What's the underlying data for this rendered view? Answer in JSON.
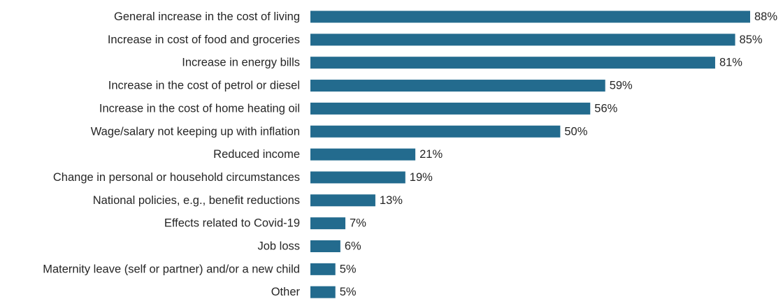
{
  "chart_data": {
    "type": "bar",
    "orientation": "horizontal",
    "categories": [
      "General increase in the cost of living",
      "Increase in cost of food and groceries",
      "Increase in energy bills",
      "Increase in the cost of petrol or diesel",
      "Increase in the cost of home heating oil",
      "Wage/salary not keeping up with inflation",
      "Reduced income",
      "Change in personal or household circumstances",
      "National policies, e.g., benefit reductions",
      "Effects related to Covid-19",
      "Job loss",
      "Maternity leave (self or partner) and/or a new child",
      "Other"
    ],
    "values": [
      88,
      85,
      81,
      59,
      56,
      50,
      21,
      19,
      13,
      7,
      6,
      5,
      5
    ],
    "value_labels": [
      "88%",
      "85%",
      "81%",
      "59%",
      "56%",
      "50%",
      "21%",
      "19%",
      "13%",
      "7%",
      "6%",
      "5%",
      "5%"
    ],
    "unit": "%",
    "xlim": [
      0,
      88
    ],
    "bar_color": "#236b8e",
    "text_color": "#262626",
    "grid": false,
    "axes_visible": false,
    "legend": "none"
  }
}
